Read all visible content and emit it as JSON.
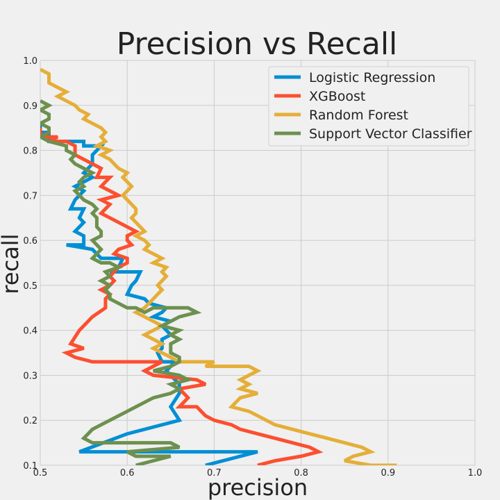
{
  "chart_data": {
    "type": "line",
    "title": "Precision vs Recall",
    "xlabel": "precision",
    "ylabel": "recall",
    "xlim": [
      0.5,
      1.0
    ],
    "ylim": [
      0.1,
      1.0
    ],
    "xticks": [
      "0.5",
      "0.6",
      "0.7",
      "0.8",
      "0.9",
      "1.0"
    ],
    "yticks": [
      "0.1",
      "0.2",
      "0.3",
      "0.4",
      "0.5",
      "0.6",
      "0.7",
      "0.8",
      "0.9",
      "1.0"
    ],
    "grid": true,
    "legend_position": "top-right",
    "series": [
      {
        "name": "Logistic Regression",
        "color": "#008fd5",
        "points": [
          [
            0.5,
            0.86
          ],
          [
            0.5,
            0.84
          ],
          [
            0.51,
            0.84
          ],
          [
            0.51,
            0.82
          ],
          [
            0.55,
            0.82
          ],
          [
            0.55,
            0.81
          ],
          [
            0.57,
            0.81
          ],
          [
            0.56,
            0.79
          ],
          [
            0.56,
            0.77
          ],
          [
            0.55,
            0.75
          ],
          [
            0.56,
            0.74
          ],
          [
            0.54,
            0.72
          ],
          [
            0.55,
            0.71
          ],
          [
            0.54,
            0.69
          ],
          [
            0.535,
            0.67
          ],
          [
            0.55,
            0.67
          ],
          [
            0.545,
            0.65
          ],
          [
            0.55,
            0.64
          ],
          [
            0.54,
            0.62
          ],
          [
            0.55,
            0.61
          ],
          [
            0.55,
            0.59
          ],
          [
            0.53,
            0.59
          ],
          [
            0.56,
            0.58
          ],
          [
            0.57,
            0.56
          ],
          [
            0.595,
            0.56
          ],
          [
            0.59,
            0.54
          ],
          [
            0.58,
            0.53
          ],
          [
            0.615,
            0.53
          ],
          [
            0.61,
            0.51
          ],
          [
            0.605,
            0.5
          ],
          [
            0.6,
            0.48
          ],
          [
            0.62,
            0.47
          ],
          [
            0.625,
            0.46
          ],
          [
            0.645,
            0.45
          ],
          [
            0.64,
            0.44
          ],
          [
            0.63,
            0.43
          ],
          [
            0.65,
            0.42
          ],
          [
            0.64,
            0.41
          ],
          [
            0.65,
            0.39
          ],
          [
            0.64,
            0.38
          ],
          [
            0.64,
            0.36
          ],
          [
            0.635,
            0.35
          ],
          [
            0.64,
            0.33
          ],
          [
            0.655,
            0.33
          ],
          [
            0.645,
            0.31
          ],
          [
            0.65,
            0.3
          ],
          [
            0.66,
            0.28
          ],
          [
            0.66,
            0.26
          ],
          [
            0.65,
            0.23
          ],
          [
            0.66,
            0.2
          ],
          [
            0.6,
            0.17
          ],
          [
            0.545,
            0.13
          ],
          [
            0.75,
            0.13
          ],
          [
            0.69,
            0.1
          ]
        ]
      },
      {
        "name": "XGBoost",
        "color": "#fc4f30",
        "points": [
          [
            0.5,
            0.85
          ],
          [
            0.5,
            0.83
          ],
          [
            0.52,
            0.83
          ],
          [
            0.51,
            0.82
          ],
          [
            0.53,
            0.82
          ],
          [
            0.54,
            0.81
          ],
          [
            0.54,
            0.79
          ],
          [
            0.56,
            0.77
          ],
          [
            0.57,
            0.76
          ],
          [
            0.565,
            0.74
          ],
          [
            0.58,
            0.74
          ],
          [
            0.57,
            0.72
          ],
          [
            0.58,
            0.71
          ],
          [
            0.59,
            0.7
          ],
          [
            0.57,
            0.69
          ],
          [
            0.58,
            0.68
          ],
          [
            0.575,
            0.67
          ],
          [
            0.57,
            0.66
          ],
          [
            0.58,
            0.65
          ],
          [
            0.59,
            0.64
          ],
          [
            0.6,
            0.63
          ],
          [
            0.61,
            0.62
          ],
          [
            0.6,
            0.61
          ],
          [
            0.6,
            0.6
          ],
          [
            0.605,
            0.59
          ],
          [
            0.59,
            0.58
          ],
          [
            0.585,
            0.57
          ],
          [
            0.6,
            0.56
          ],
          [
            0.6,
            0.55
          ],
          [
            0.59,
            0.54
          ],
          [
            0.58,
            0.52
          ],
          [
            0.585,
            0.51
          ],
          [
            0.58,
            0.5
          ],
          [
            0.57,
            0.49
          ],
          [
            0.58,
            0.48
          ],
          [
            0.575,
            0.47
          ],
          [
            0.575,
            0.45
          ],
          [
            0.56,
            0.43
          ],
          [
            0.545,
            0.4
          ],
          [
            0.535,
            0.37
          ],
          [
            0.55,
            0.36
          ],
          [
            0.53,
            0.35
          ],
          [
            0.54,
            0.34
          ],
          [
            0.56,
            0.33
          ],
          [
            0.64,
            0.33
          ],
          [
            0.62,
            0.31
          ],
          [
            0.63,
            0.3
          ],
          [
            0.68,
            0.29
          ],
          [
            0.69,
            0.28
          ],
          [
            0.66,
            0.27
          ],
          [
            0.67,
            0.25
          ],
          [
            0.66,
            0.23
          ],
          [
            0.68,
            0.23
          ],
          [
            0.69,
            0.21
          ],
          [
            0.7,
            0.2
          ],
          [
            0.72,
            0.19
          ],
          [
            0.73,
            0.18
          ],
          [
            0.75,
            0.17
          ],
          [
            0.77,
            0.16
          ],
          [
            0.79,
            0.15
          ],
          [
            0.81,
            0.14
          ],
          [
            0.82,
            0.13
          ],
          [
            0.8,
            0.12
          ],
          [
            0.77,
            0.11
          ],
          [
            0.75,
            0.1
          ]
        ]
      },
      {
        "name": "Random Forest",
        "color": "#e5ae38",
        "points": [
          [
            0.5,
            0.98
          ],
          [
            0.51,
            0.97
          ],
          [
            0.51,
            0.95
          ],
          [
            0.52,
            0.94
          ],
          [
            0.53,
            0.93
          ],
          [
            0.52,
            0.92
          ],
          [
            0.53,
            0.91
          ],
          [
            0.54,
            0.9
          ],
          [
            0.545,
            0.89
          ],
          [
            0.555,
            0.88
          ],
          [
            0.55,
            0.87
          ],
          [
            0.56,
            0.86
          ],
          [
            0.57,
            0.85
          ],
          [
            0.575,
            0.84
          ],
          [
            0.57,
            0.83
          ],
          [
            0.575,
            0.82
          ],
          [
            0.565,
            0.81
          ],
          [
            0.58,
            0.8
          ],
          [
            0.57,
            0.79
          ],
          [
            0.58,
            0.78
          ],
          [
            0.585,
            0.77
          ],
          [
            0.59,
            0.76
          ],
          [
            0.6,
            0.75
          ],
          [
            0.595,
            0.74
          ],
          [
            0.6,
            0.73
          ],
          [
            0.605,
            0.72
          ],
          [
            0.6,
            0.71
          ],
          [
            0.595,
            0.7
          ],
          [
            0.6,
            0.69
          ],
          [
            0.605,
            0.68
          ],
          [
            0.61,
            0.67
          ],
          [
            0.61,
            0.66
          ],
          [
            0.605,
            0.65
          ],
          [
            0.61,
            0.64
          ],
          [
            0.615,
            0.63
          ],
          [
            0.62,
            0.62
          ],
          [
            0.61,
            0.61
          ],
          [
            0.62,
            0.6
          ],
          [
            0.625,
            0.59
          ],
          [
            0.62,
            0.58
          ],
          [
            0.63,
            0.57
          ],
          [
            0.64,
            0.56
          ],
          [
            0.63,
            0.55
          ],
          [
            0.645,
            0.54
          ],
          [
            0.64,
            0.53
          ],
          [
            0.645,
            0.52
          ],
          [
            0.64,
            0.51
          ],
          [
            0.635,
            0.5
          ],
          [
            0.64,
            0.49
          ],
          [
            0.635,
            0.48
          ],
          [
            0.63,
            0.47
          ],
          [
            0.625,
            0.46
          ],
          [
            0.62,
            0.45
          ],
          [
            0.61,
            0.44
          ],
          [
            0.62,
            0.43
          ],
          [
            0.63,
            0.42
          ],
          [
            0.64,
            0.41
          ],
          [
            0.63,
            0.4
          ],
          [
            0.62,
            0.39
          ],
          [
            0.63,
            0.38
          ],
          [
            0.64,
            0.37
          ],
          [
            0.63,
            0.36
          ],
          [
            0.65,
            0.34
          ],
          [
            0.66,
            0.33
          ],
          [
            0.7,
            0.33
          ],
          [
            0.69,
            0.32
          ],
          [
            0.74,
            0.32
          ],
          [
            0.75,
            0.31
          ],
          [
            0.74,
            0.3
          ],
          [
            0.73,
            0.29
          ],
          [
            0.74,
            0.28
          ],
          [
            0.73,
            0.27
          ],
          [
            0.75,
            0.26
          ],
          [
            0.73,
            0.25
          ],
          [
            0.72,
            0.23
          ],
          [
            0.74,
            0.22
          ],
          [
            0.75,
            0.21
          ],
          [
            0.76,
            0.2
          ],
          [
            0.77,
            0.19
          ],
          [
            0.79,
            0.18
          ],
          [
            0.81,
            0.17
          ],
          [
            0.83,
            0.16
          ],
          [
            0.85,
            0.15
          ],
          [
            0.87,
            0.14
          ],
          [
            0.88,
            0.13
          ],
          [
            0.86,
            0.12
          ],
          [
            0.85,
            0.11
          ],
          [
            0.88,
            0.1
          ],
          [
            0.91,
            0.1
          ]
        ]
      },
      {
        "name": "Support Vector Classifier",
        "color": "#6d904f",
        "points": [
          [
            0.5,
            0.91
          ],
          [
            0.51,
            0.9
          ],
          [
            0.5,
            0.89
          ],
          [
            0.51,
            0.88
          ],
          [
            0.51,
            0.87
          ],
          [
            0.5,
            0.86
          ],
          [
            0.51,
            0.85
          ],
          [
            0.51,
            0.84
          ],
          [
            0.5,
            0.83
          ],
          [
            0.51,
            0.82
          ],
          [
            0.53,
            0.81
          ],
          [
            0.53,
            0.8
          ],
          [
            0.54,
            0.79
          ],
          [
            0.535,
            0.78
          ],
          [
            0.54,
            0.77
          ],
          [
            0.55,
            0.76
          ],
          [
            0.56,
            0.75
          ],
          [
            0.55,
            0.74
          ],
          [
            0.545,
            0.73
          ],
          [
            0.55,
            0.72
          ],
          [
            0.54,
            0.71
          ],
          [
            0.545,
            0.7
          ],
          [
            0.55,
            0.69
          ],
          [
            0.56,
            0.68
          ],
          [
            0.565,
            0.67
          ],
          [
            0.56,
            0.66
          ],
          [
            0.565,
            0.65
          ],
          [
            0.565,
            0.64
          ],
          [
            0.565,
            0.63
          ],
          [
            0.57,
            0.62
          ],
          [
            0.57,
            0.61
          ],
          [
            0.56,
            0.6
          ],
          [
            0.565,
            0.59
          ],
          [
            0.57,
            0.58
          ],
          [
            0.565,
            0.57
          ],
          [
            0.56,
            0.56
          ],
          [
            0.57,
            0.55
          ],
          [
            0.58,
            0.55
          ],
          [
            0.59,
            0.54
          ],
          [
            0.575,
            0.53
          ],
          [
            0.58,
            0.52
          ],
          [
            0.57,
            0.51
          ],
          [
            0.58,
            0.5
          ],
          [
            0.575,
            0.49
          ],
          [
            0.58,
            0.48
          ],
          [
            0.58,
            0.47
          ],
          [
            0.59,
            0.46
          ],
          [
            0.6,
            0.45
          ],
          [
            0.61,
            0.45
          ],
          [
            0.62,
            0.44
          ],
          [
            0.63,
            0.45
          ],
          [
            0.67,
            0.45
          ],
          [
            0.68,
            0.44
          ],
          [
            0.66,
            0.43
          ],
          [
            0.65,
            0.42
          ],
          [
            0.64,
            0.41
          ],
          [
            0.66,
            0.4
          ],
          [
            0.65,
            0.39
          ],
          [
            0.66,
            0.38
          ],
          [
            0.65,
            0.37
          ],
          [
            0.65,
            0.36
          ],
          [
            0.65,
            0.35
          ],
          [
            0.66,
            0.34
          ],
          [
            0.66,
            0.33
          ],
          [
            0.65,
            0.32
          ],
          [
            0.63,
            0.31
          ],
          [
            0.66,
            0.3
          ],
          [
            0.67,
            0.29
          ],
          [
            0.65,
            0.28
          ],
          [
            0.66,
            0.27
          ],
          [
            0.65,
            0.26
          ],
          [
            0.63,
            0.25
          ],
          [
            0.62,
            0.24
          ],
          [
            0.6,
            0.22
          ],
          [
            0.58,
            0.2
          ],
          [
            0.56,
            0.18
          ],
          [
            0.55,
            0.16
          ],
          [
            0.56,
            0.15
          ],
          [
            0.65,
            0.15
          ],
          [
            0.66,
            0.14
          ],
          [
            0.6,
            0.13
          ],
          [
            0.61,
            0.12
          ],
          [
            0.65,
            0.12
          ],
          [
            0.61,
            0.1
          ]
        ]
      }
    ]
  }
}
